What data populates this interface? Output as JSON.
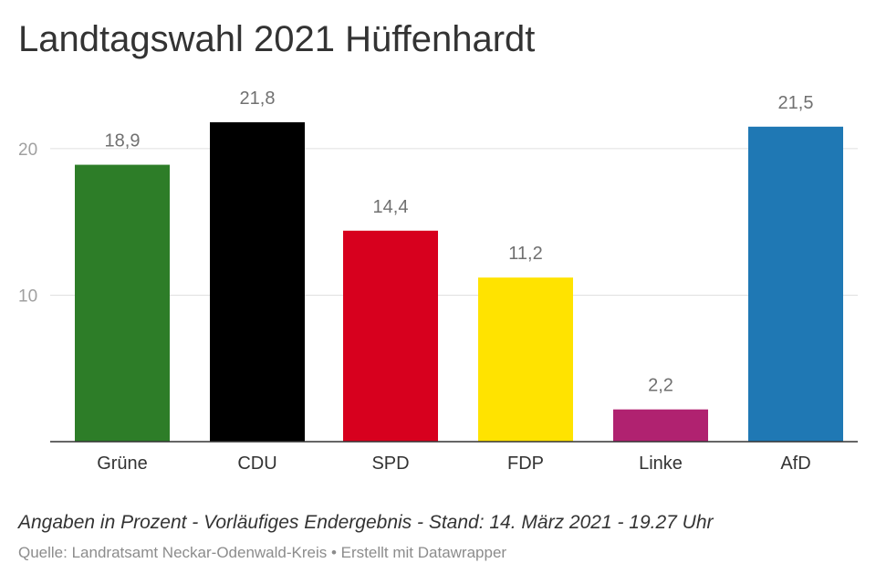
{
  "header": {
    "title": "Landtagswahl 2021 Hüffenhardt"
  },
  "footer": {
    "note": "Angaben in Prozent - Vorläufiges Endergebnis - Stand: 14. März 2021 - 19.27 Uhr",
    "source": "Quelle: Landratsamt Neckar-Odenwald-Kreis",
    "separator": " • ",
    "credit": "Erstellt mit Datawrapper"
  },
  "chart_data": {
    "type": "bar",
    "title": "Landtagswahl 2021 Hüffenhardt",
    "xlabel": "",
    "ylabel": "",
    "categories": [
      "Grüne",
      "CDU",
      "SPD",
      "FDP",
      "Linke",
      "AfD"
    ],
    "values": [
      18.9,
      21.8,
      14.4,
      11.2,
      2.2,
      21.5
    ],
    "value_labels": [
      "18,9",
      "21,8",
      "14,4",
      "11,2",
      "2,2",
      "21,5"
    ],
    "colors": [
      "#2d7d28",
      "#000000",
      "#d7001e",
      "#ffe300",
      "#b02270",
      "#1f78b4"
    ],
    "ylim": [
      0,
      21.8
    ],
    "yticks": [
      10,
      20
    ],
    "ytick_labels": [
      "10",
      "20"
    ],
    "grid": true,
    "legend": "none",
    "gridline_color": "#e0e0e0",
    "axis_color": "#333333",
    "tick_label_color": "#a0a0a0",
    "value_label_color": "#707070"
  }
}
